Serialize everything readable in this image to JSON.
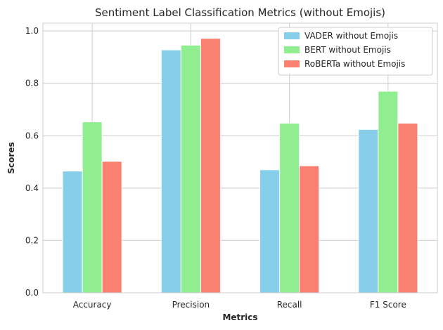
{
  "chart_data": {
    "type": "bar",
    "title": "Sentiment Label Classification Metrics (without Emojis)",
    "xlabel": "Metrics",
    "ylabel": "Scores",
    "categories": [
      "Accuracy",
      "Precision",
      "Recall",
      "F1 Score"
    ],
    "series": [
      {
        "name": "VADER without Emojis",
        "color": "#87ceeb",
        "values": [
          0.465,
          0.928,
          0.47,
          0.624
        ]
      },
      {
        "name": "BERT without Emojis",
        "color": "#90ee90",
        "values": [
          0.653,
          0.946,
          0.648,
          0.77
        ]
      },
      {
        "name": "RoBERTa without Emojis",
        "color": "#fa8072",
        "values": [
          0.502,
          0.972,
          0.485,
          0.648
        ]
      }
    ],
    "ylim": [
      0,
      1.03
    ],
    "yticks": [
      0.0,
      0.2,
      0.4,
      0.6,
      0.8,
      1.0
    ],
    "ytick_labels": [
      "0.0",
      "0.2",
      "0.4",
      "0.6",
      "0.8",
      "1.0"
    ],
    "grid": true,
    "legend_position": "top-right"
  }
}
